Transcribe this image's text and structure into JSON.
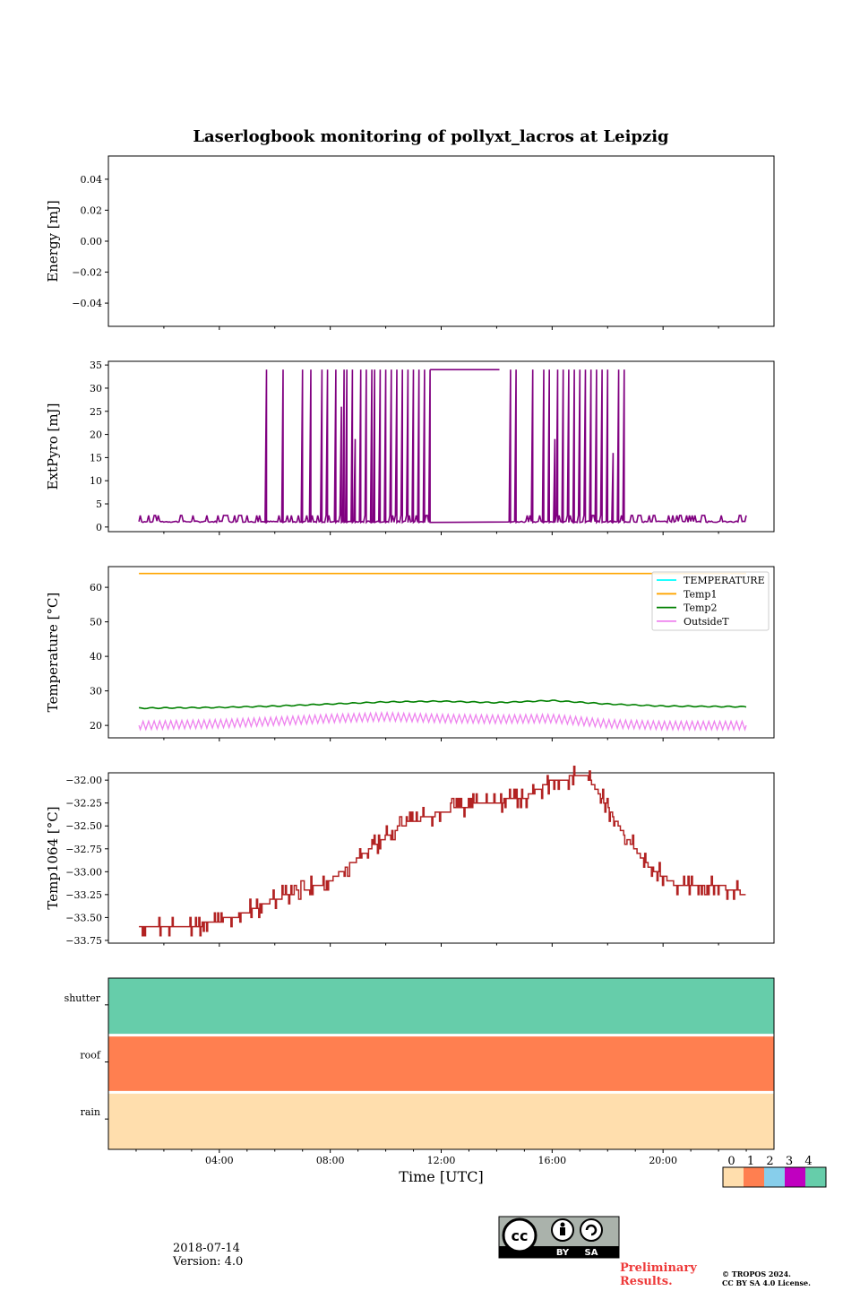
{
  "title": "Laserlogbook monitoring of pollyxt_lacros at Leipzig",
  "date_text": "2018-07-14",
  "version_text": "Version: 4.0",
  "preliminary_line1": "Preliminary",
  "preliminary_line2": "Results.",
  "copyright_line1": "© TROPOS 2024.",
  "copyright_line2": "CC BY SA 4.0 License.",
  "license_badge": {
    "by": "BY",
    "sa": "SA",
    "icon": "cc-by-sa-icon"
  },
  "colors": {
    "purple": "#800080",
    "orange": "#ffa500",
    "green": "#008000",
    "violet": "#ee82ee",
    "cyan": "#00ffff",
    "brown": "#b22222",
    "shutter": "#66cdaa",
    "roof": "#ff7f50",
    "rain": "#ffdead"
  },
  "chart_data": [
    {
      "type": "line",
      "id": "energy",
      "ylabel": "Energy [mJ]",
      "ylim": [
        -0.055,
        0.055
      ],
      "yticks": [
        0.04,
        0.02,
        0.0,
        -0.02,
        -0.04
      ],
      "yticklabels": [
        "0.04",
        "0.02",
        "0.00",
        "−0.02",
        "−0.04"
      ],
      "xlim_hours": [
        0,
        24
      ],
      "series": []
    },
    {
      "type": "line",
      "id": "extpyro",
      "ylabel": "ExtPyro [mJ]",
      "ylim": [
        -1,
        35.8
      ],
      "yticks": [
        0,
        5,
        10,
        15,
        20,
        25,
        30,
        35
      ],
      "yticklabels": [
        "0",
        "5",
        "10",
        "15",
        "20",
        "25",
        "30",
        "35"
      ],
      "xlim_hours": [
        0,
        24
      ],
      "series": [
        {
          "color": "purple",
          "baseline": 1.0,
          "x_start": 1.1,
          "x_end": 23.0,
          "plateau": [
            11.6,
            14.1,
            34
          ],
          "gap": [
            11.6,
            14.4
          ],
          "spikes": [
            [
              5.7,
              34
            ],
            [
              6.3,
              34
            ],
            [
              7.0,
              34
            ],
            [
              7.3,
              34
            ],
            [
              7.7,
              34
            ],
            [
              7.9,
              34
            ],
            [
              8.2,
              34
            ],
            [
              8.4,
              26
            ],
            [
              8.5,
              34
            ],
            [
              8.6,
              34
            ],
            [
              8.8,
              34
            ],
            [
              8.9,
              19
            ],
            [
              9.1,
              34
            ],
            [
              9.3,
              34
            ],
            [
              9.5,
              34
            ],
            [
              9.6,
              34
            ],
            [
              9.8,
              34
            ],
            [
              10.0,
              34
            ],
            [
              10.2,
              34
            ],
            [
              10.4,
              34
            ],
            [
              10.6,
              34
            ],
            [
              10.8,
              34
            ],
            [
              11.0,
              34
            ],
            [
              11.2,
              34
            ],
            [
              11.4,
              34
            ],
            [
              11.6,
              34
            ],
            [
              13.8,
              34
            ],
            [
              14.0,
              34
            ],
            [
              14.3,
              34
            ],
            [
              14.5,
              34
            ],
            [
              14.7,
              34
            ],
            [
              15.3,
              34
            ],
            [
              15.7,
              34
            ],
            [
              15.9,
              34
            ],
            [
              16.1,
              19
            ],
            [
              16.2,
              34
            ],
            [
              16.4,
              34
            ],
            [
              16.6,
              34
            ],
            [
              16.8,
              34
            ],
            [
              17.0,
              34
            ],
            [
              17.2,
              34
            ],
            [
              17.4,
              34
            ],
            [
              17.6,
              34
            ],
            [
              17.8,
              34
            ],
            [
              18.0,
              34
            ],
            [
              18.2,
              16
            ],
            [
              18.4,
              34
            ],
            [
              18.6,
              34
            ]
          ]
        }
      ]
    },
    {
      "type": "line",
      "id": "temperature",
      "ylabel": "Temperature [°C]",
      "ylim": [
        16.4,
        66.0
      ],
      "yticks": [
        20,
        30,
        40,
        50,
        60
      ],
      "yticklabels": [
        "20",
        "30",
        "40",
        "50",
        "60"
      ],
      "xlim_hours": [
        0,
        24
      ],
      "legend_position": "top-right",
      "series": [
        {
          "name": "TEMPERATURE",
          "color": "cyan",
          "points": []
        },
        {
          "name": "Temp1",
          "color": "orange",
          "points": [
            [
              1.1,
              64
            ],
            [
              23.0,
              64
            ]
          ]
        },
        {
          "name": "Temp2",
          "color": "green",
          "points": [
            [
              1.1,
              25.0
            ],
            [
              4.0,
              25.2
            ],
            [
              6.0,
              25.6
            ],
            [
              8.0,
              26.2
            ],
            [
              10.0,
              26.8
            ],
            [
              12.0,
              27.0
            ],
            [
              14.0,
              26.6
            ],
            [
              16.0,
              27.2
            ],
            [
              18.0,
              26.2
            ],
            [
              20.0,
              25.6
            ],
            [
              23.0,
              25.4
            ]
          ]
        },
        {
          "name": "OutsideT",
          "color": "violet",
          "center": [
            [
              1.1,
              20.0
            ],
            [
              4.0,
              20.5
            ],
            [
              6.0,
              21.2
            ],
            [
              8.0,
              22.0
            ],
            [
              10.0,
              22.5
            ],
            [
              12.0,
              22.0
            ],
            [
              14.0,
              21.8
            ],
            [
              16.0,
              22.0
            ],
            [
              18.0,
              20.5
            ],
            [
              20.0,
              20.0
            ],
            [
              23.0,
              20.0
            ]
          ],
          "amplitude": 1.2
        }
      ]
    },
    {
      "type": "line",
      "id": "temp1064",
      "ylabel": "Temp1064 [°C]",
      "ylim": [
        -33.78,
        -31.92
      ],
      "yticks": [
        -32.0,
        -32.25,
        -32.5,
        -32.75,
        -33.0,
        -33.25,
        -33.5,
        -33.75
      ],
      "yticklabels": [
        "−32.00",
        "−32.25",
        "−32.50",
        "−32.75",
        "−33.00",
        "−33.25",
        "−33.50",
        "−33.75"
      ],
      "xlim_hours": [
        0,
        24
      ],
      "series": [
        {
          "color": "brown",
          "points": [
            [
              1.1,
              -33.6
            ],
            [
              3.0,
              -33.6
            ],
            [
              4.5,
              -33.5
            ],
            [
              6.0,
              -33.3
            ],
            [
              8.0,
              -33.1
            ],
            [
              9.0,
              -32.85
            ],
            [
              10.5,
              -32.5
            ],
            [
              12.0,
              -32.35
            ],
            [
              13.5,
              -32.25
            ],
            [
              15.0,
              -32.2
            ],
            [
              16.0,
              -32.0
            ],
            [
              17.2,
              -31.95
            ],
            [
              17.8,
              -32.2
            ],
            [
              18.6,
              -32.6
            ],
            [
              19.5,
              -32.95
            ],
            [
              20.5,
              -33.15
            ],
            [
              22.0,
              -33.15
            ],
            [
              23.0,
              -33.25
            ]
          ]
        }
      ]
    },
    {
      "type": "bar",
      "id": "status",
      "categories": [
        "shutter",
        "roof",
        "rain"
      ],
      "xlabel": "Time [UTC]",
      "xticklabels": [
        "04:00",
        "08:00",
        "12:00",
        "16:00",
        "20:00"
      ],
      "xtick_hours": [
        4,
        8,
        12,
        16,
        20
      ],
      "states": [
        4,
        1,
        0
      ]
    }
  ],
  "colorbar": {
    "labels": [
      "0",
      "1",
      "2",
      "3",
      "4"
    ],
    "colors": [
      "#ffdead",
      "#ff7f50",
      "#87ceeb",
      "#c000c0",
      "#66cdaa"
    ]
  }
}
